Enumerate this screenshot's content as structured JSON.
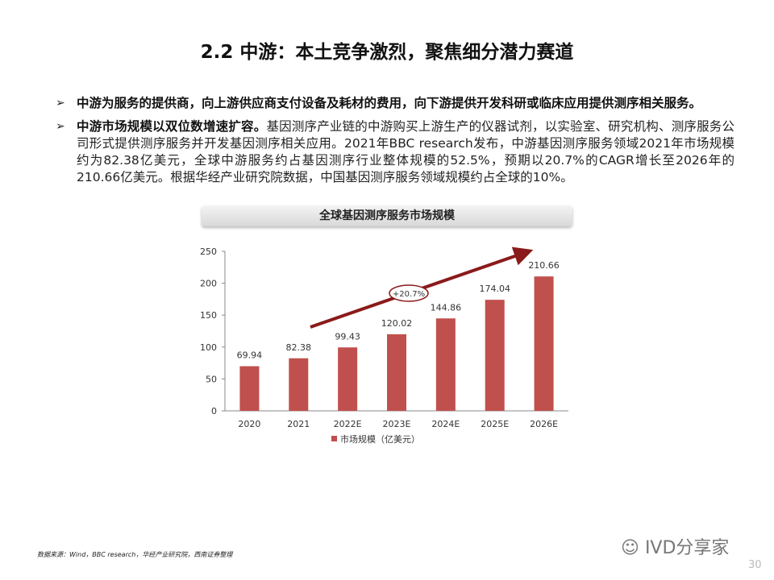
{
  "title": "2.2 中游：本土竞争激烈，聚焦细分潜力赛道",
  "bullets": [
    {
      "icon": "arrow-bullet-icon",
      "bold": "中游为服务的提供商，向上游供应商支付设备及耗材的费用，向下游提供开发科研或临床应用提供测序相关服务。",
      "text": ""
    },
    {
      "icon": "arrow-bullet-icon",
      "bold": "中游市场规模以双位数增速扩容。",
      "text": "基因测序产业链的中游购买上游生产的仪器试剂，以实验室、研究机构、测序服务公司形式提供测序服务并开发基因测序相关应用。2021年BBC research发布，中游基因测序服务领域2021年市场规模约为82.38亿美元，全球中游服务约占基因测序行业整体规模的52.5%，预期以20.7%的CAGR增长至2026年的210.66亿美元。根据华经产业研究院数据，中国基因测序服务领域规模约占全球的10%。"
    }
  ],
  "chart_data": {
    "type": "bar",
    "title": "全球基因测序服务市场规模",
    "categories": [
      "2020",
      "2021",
      "2022E",
      "2023E",
      "2024E",
      "2025E",
      "2026E"
    ],
    "series": [
      {
        "name": "市场规模（亿美元）",
        "values": [
          69.94,
          82.38,
          99.43,
          120.02,
          144.86,
          174.04,
          210.66
        ],
        "labels": [
          "69.94",
          "82.38",
          "99.43",
          "120.02",
          "144.86",
          "174.04",
          "210.66"
        ]
      }
    ],
    "ylim": [
      0,
      250
    ],
    "yticks": [
      0,
      50,
      100,
      150,
      200,
      250
    ],
    "annotation": "+20.7%",
    "legend": "bottom",
    "bar_color": "#c0504d",
    "arrow_color": "#8b1a1a"
  },
  "source": "数据来源：Wind，BBC research，华经产业研究院，西南证券整理",
  "watermark": "IVD分享家",
  "page_number": "30"
}
